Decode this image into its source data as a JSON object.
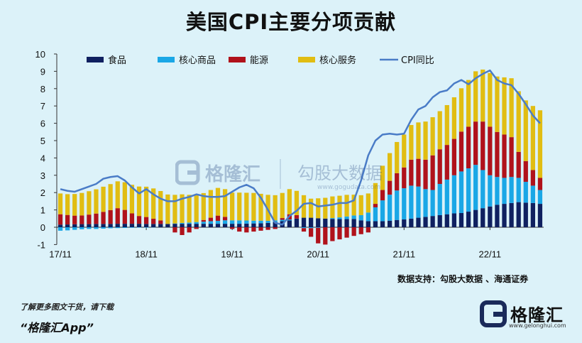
{
  "page": {
    "title": "美国CPI主要分项贡献",
    "source": "数据支持：勾股大数据 、海通证券",
    "footer_tip": "了解更多图文干货，请下载",
    "footer_app": "“格隆汇App”",
    "logo_text": "格隆汇",
    "logo_url": "www.gelonghui.com",
    "watermark_text1": "格隆汇",
    "watermark_text2": "勾股大数据",
    "watermark_url": "www.gogudata.com"
  },
  "chart_data": {
    "type": "bar",
    "stacked": true,
    "title": "美国CPI主要分项贡献",
    "xlabel": "",
    "ylabel": "",
    "ylim": [
      -1,
      10
    ],
    "yticks": [
      -1,
      0,
      1,
      2,
      3,
      4,
      5,
      6,
      7,
      8,
      9,
      10
    ],
    "x_tick_labels": [
      "17/11",
      "18/11",
      "19/11",
      "20/11",
      "21/11",
      "22/11"
    ],
    "x_tick_index": [
      0,
      12,
      24,
      36,
      48,
      60
    ],
    "legend": [
      "食品",
      "核心商品",
      "能源",
      "核心服务",
      "CPI同比"
    ],
    "colors": {
      "food": "#0f2060",
      "core_goods": "#1aa7e6",
      "energy": "#b0121b",
      "core_services": "#e1bd12",
      "cpi": "#4a7cc7"
    },
    "series": [
      {
        "name": "食品",
        "key": "food",
        "values": [
          0.15,
          0.16,
          0.17,
          0.18,
          0.18,
          0.19,
          0.19,
          0.19,
          0.2,
          0.2,
          0.2,
          0.2,
          0.19,
          0.19,
          0.19,
          0.19,
          0.2,
          0.2,
          0.2,
          0.2,
          0.2,
          0.2,
          0.2,
          0.2,
          0.2,
          0.2,
          0.21,
          0.22,
          0.23,
          0.25,
          0.3,
          0.35,
          0.4,
          0.5,
          0.55,
          0.55,
          0.52,
          0.5,
          0.48,
          0.47,
          0.47,
          0.48,
          0.4,
          0.35,
          0.35,
          0.35,
          0.38,
          0.42,
          0.45,
          0.5,
          0.55,
          0.6,
          0.65,
          0.7,
          0.75,
          0.8,
          0.82,
          0.9,
          1.0,
          1.1,
          1.2,
          1.3,
          1.35,
          1.4,
          1.45,
          1.42,
          1.4,
          1.35
        ]
      },
      {
        "name": "核心商品",
        "key": "core_goods",
        "values": [
          -0.2,
          -0.18,
          -0.15,
          -0.12,
          -0.1,
          -0.1,
          -0.08,
          -0.06,
          -0.05,
          -0.04,
          -0.03,
          -0.02,
          -0.02,
          -0.01,
          0.0,
          0.0,
          0.02,
          0.05,
          0.07,
          0.1,
          0.12,
          0.15,
          0.17,
          0.2,
          0.2,
          0.2,
          0.18,
          0.16,
          0.15,
          0.12,
          0.1,
          0.08,
          0.05,
          0.0,
          -0.05,
          -0.05,
          -0.03,
          0.0,
          0.05,
          0.1,
          0.15,
          0.2,
          0.3,
          0.5,
          0.8,
          1.2,
          1.5,
          1.7,
          1.8,
          1.9,
          1.8,
          1.6,
          1.5,
          1.8,
          2.0,
          2.2,
          2.4,
          2.5,
          2.6,
          2.2,
          1.8,
          1.6,
          1.5,
          1.5,
          1.4,
          1.2,
          1.0,
          0.8
        ]
      },
      {
        "name": "能源",
        "key": "energy",
        "values": [
          0.6,
          0.55,
          0.5,
          0.5,
          0.55,
          0.6,
          0.7,
          0.8,
          0.9,
          0.8,
          0.6,
          0.45,
          0.4,
          0.3,
          0.2,
          0.0,
          -0.3,
          -0.45,
          -0.3,
          -0.1,
          0.1,
          0.2,
          0.3,
          0.2,
          -0.1,
          -0.25,
          -0.3,
          -0.25,
          -0.2,
          -0.15,
          -0.1,
          0.1,
          0.3,
          0.2,
          -0.2,
          -0.5,
          -0.9,
          -1.0,
          -0.8,
          -0.7,
          -0.6,
          -0.5,
          -0.4,
          -0.3,
          0.2,
          0.6,
          0.8,
          1.0,
          1.2,
          1.5,
          1.6,
          1.7,
          2.0,
          2.0,
          2.0,
          2.1,
          2.3,
          2.4,
          2.5,
          2.8,
          2.8,
          2.6,
          2.5,
          2.3,
          1.5,
          1.2,
          0.9,
          0.7
        ]
      },
      {
        "name": "核心服务",
        "key": "core_services",
        "values": [
          1.2,
          1.2,
          1.25,
          1.3,
          1.35,
          1.4,
          1.45,
          1.5,
          1.55,
          1.6,
          1.65,
          1.7,
          1.75,
          1.75,
          1.7,
          1.7,
          1.65,
          1.65,
          1.6,
          1.55,
          1.55,
          1.6,
          1.6,
          1.6,
          1.6,
          1.6,
          1.6,
          1.6,
          1.55,
          1.5,
          1.45,
          1.45,
          1.45,
          1.4,
          1.3,
          1.1,
          1.15,
          1.2,
          1.25,
          1.25,
          1.25,
          1.2,
          1.15,
          1.1,
          1.2,
          1.4,
          1.6,
          1.8,
          1.9,
          2.0,
          2.1,
          2.2,
          2.2,
          2.2,
          2.3,
          2.4,
          2.5,
          2.7,
          2.9,
          3.0,
          3.1,
          3.2,
          3.3,
          3.4,
          3.5,
          3.5,
          3.7,
          3.9
        ]
      },
      {
        "name": "CPI同比",
        "key": "cpi",
        "type": "line",
        "values": [
          2.2,
          2.1,
          2.05,
          2.2,
          2.35,
          2.5,
          2.8,
          2.9,
          2.95,
          2.7,
          2.3,
          1.95,
          2.2,
          1.9,
          1.65,
          1.5,
          1.5,
          1.65,
          1.75,
          1.9,
          1.8,
          1.75,
          1.75,
          1.8,
          2.05,
          2.3,
          2.45,
          2.25,
          1.7,
          1.0,
          0.25,
          0.15,
          0.65,
          0.95,
          1.35,
          1.4,
          1.2,
          1.25,
          1.3,
          1.4,
          1.4,
          1.55,
          2.7,
          4.15,
          5.0,
          5.35,
          5.4,
          5.35,
          5.4,
          6.2,
          6.8,
          7.0,
          7.5,
          7.8,
          7.9,
          8.3,
          8.5,
          8.25,
          8.6,
          8.85,
          9.05,
          8.5,
          8.3,
          8.2,
          7.7,
          7.1,
          6.45,
          6.0
        ]
      }
    ]
  }
}
